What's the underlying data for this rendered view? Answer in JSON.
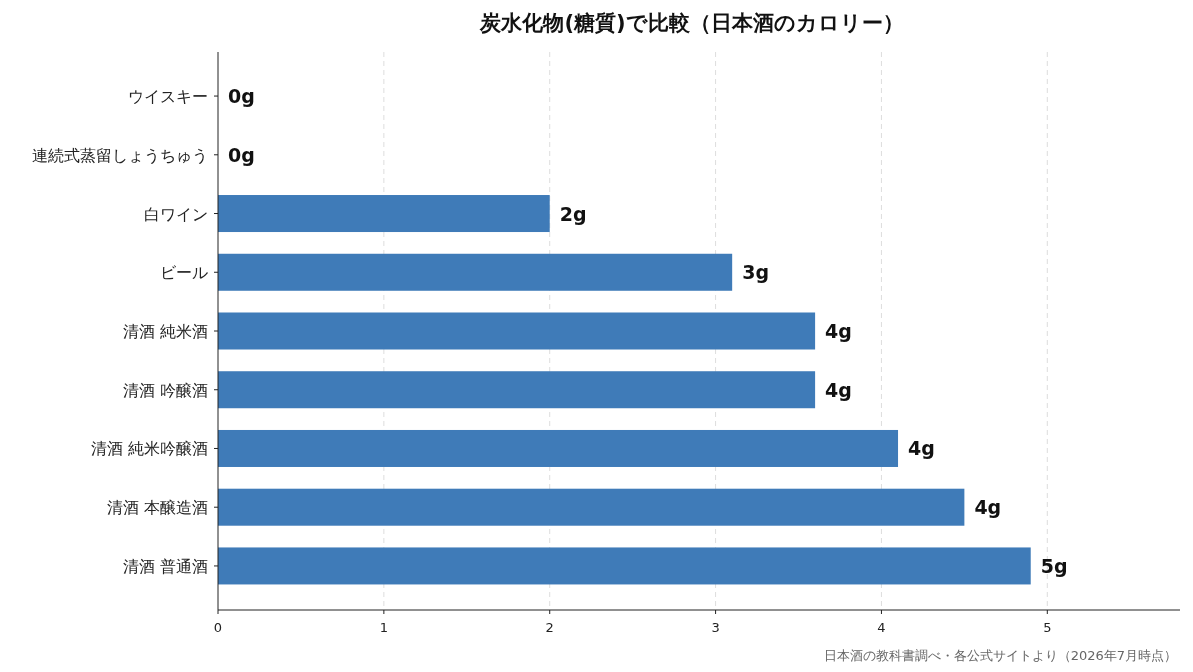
{
  "chart_data": {
    "type": "bar",
    "orientation": "horizontal",
    "title": "炭水化物(糖質)で比較（日本酒のカロリー）",
    "categories": [
      "ウイスキー",
      "連続式蒸留しょうちゅう",
      "白ワイン",
      "ビール",
      "清酒 純米酒",
      "清酒 吟醸酒",
      "清酒 純米吟醸酒",
      "清酒 本醸造酒",
      "清酒 普通酒"
    ],
    "values": [
      0,
      0,
      2.0,
      3.1,
      3.6,
      3.6,
      4.1,
      4.5,
      4.9
    ],
    "value_labels": [
      "0g",
      "0g",
      "2g",
      "3g",
      "4g",
      "4g",
      "4g",
      "4g",
      "5g"
    ],
    "color": "#3f7bb8",
    "xlim": [
      0,
      5.8
    ],
    "xticks": [
      0,
      1,
      2,
      3,
      4,
      5
    ],
    "grid": "x",
    "annotations": [
      "日本酒の教科書調べ・各公式サイトより（2026年7月時点）"
    ]
  }
}
